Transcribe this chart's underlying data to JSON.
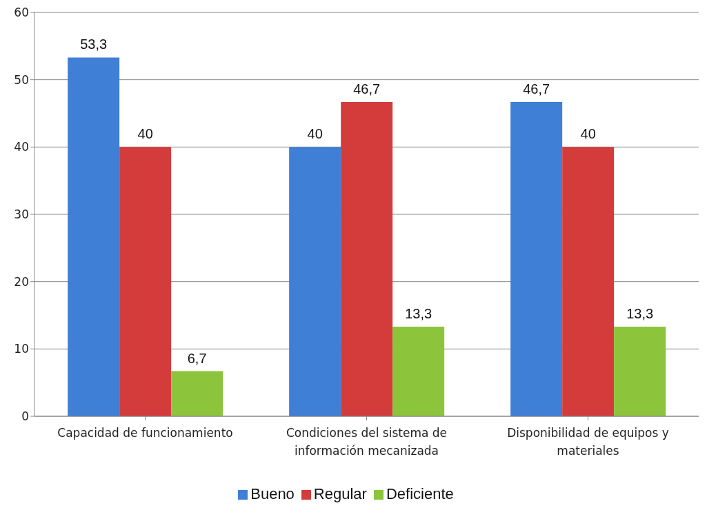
{
  "chart_data": {
    "type": "bar",
    "categories": [
      "Capacidad de funcionamiento",
      "Condiciones del sistema de información mecanizada",
      "Disponibilidad de equipos y materiales"
    ],
    "series": [
      {
        "name": "Bueno",
        "color": "#3f7fd6",
        "values": [
          53.3,
          40,
          46.7
        ],
        "value_labels": [
          "53,3",
          "40",
          "46,7"
        ]
      },
      {
        "name": "Regular",
        "color": "#d43c3c",
        "values": [
          40,
          46.7,
          40
        ],
        "value_labels": [
          "40",
          "46,7",
          "40"
        ]
      },
      {
        "name": "Deficiente",
        "color": "#8cc43c",
        "values": [
          6.7,
          13.3,
          13.3
        ],
        "value_labels": [
          "6,7",
          "13,3",
          "13,3"
        ]
      }
    ],
    "ylim": [
      0,
      60
    ],
    "yticks": [
      0,
      10,
      20,
      30,
      40,
      50,
      60
    ],
    "grid": "y",
    "legend": "bottom"
  }
}
